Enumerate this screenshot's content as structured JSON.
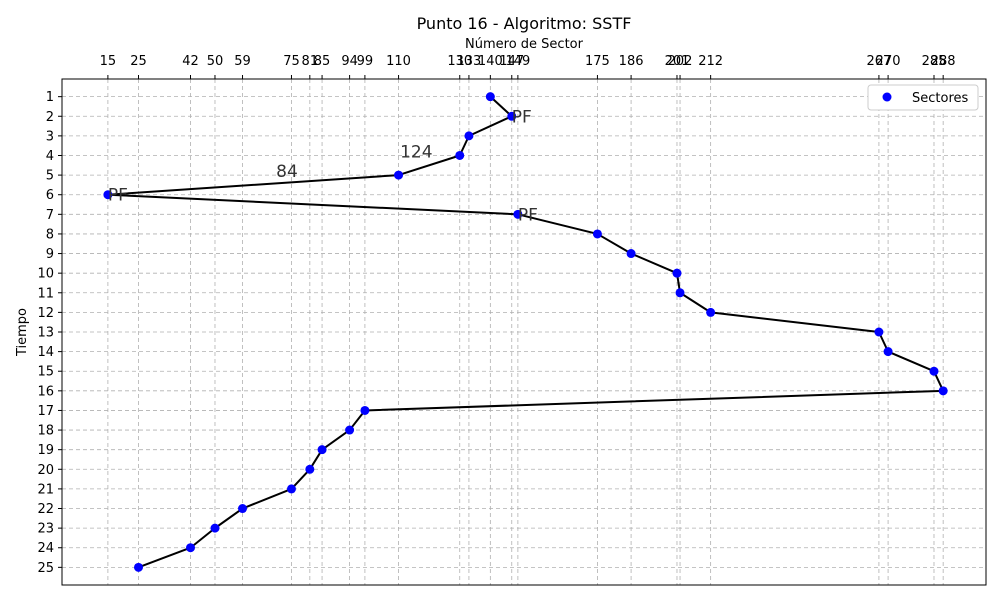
{
  "chart_data": {
    "type": "line",
    "title": "Punto 16 - Algoritmo: SSTF",
    "xlabel": "Número de Sector",
    "ylabel": "Tiempo",
    "legend": {
      "label": "Sectores",
      "position": "top-right"
    },
    "x_ticks": [
      15,
      25,
      42,
      50,
      59,
      75,
      81,
      85,
      94,
      99,
      110,
      130,
      133,
      140,
      147,
      149,
      175,
      186,
      201,
      202,
      212,
      267,
      270,
      285,
      288
    ],
    "y_ticks": [
      1,
      2,
      3,
      4,
      5,
      6,
      7,
      8,
      9,
      10,
      11,
      12,
      13,
      14,
      15,
      16,
      17,
      18,
      19,
      20,
      21,
      22,
      23,
      24,
      25
    ],
    "xlim": [
      0,
      302
    ],
    "ylim": [
      25.9,
      0.1
    ],
    "grid": true,
    "points": [
      {
        "x": 140,
        "y": 1
      },
      {
        "x": 147,
        "y": 2
      },
      {
        "x": 133,
        "y": 3
      },
      {
        "x": 130,
        "y": 4
      },
      {
        "x": 110,
        "y": 5
      },
      {
        "x": 15,
        "y": 6
      },
      {
        "x": 149,
        "y": 7
      },
      {
        "x": 175,
        "y": 8
      },
      {
        "x": 186,
        "y": 9
      },
      {
        "x": 201,
        "y": 10
      },
      {
        "x": 202,
        "y": 11
      },
      {
        "x": 212,
        "y": 12
      },
      {
        "x": 267,
        "y": 13
      },
      {
        "x": 270,
        "y": 14
      },
      {
        "x": 285,
        "y": 15
      },
      {
        "x": 288,
        "y": 16
      },
      {
        "x": 99,
        "y": 17
      },
      {
        "x": 94,
        "y": 18
      },
      {
        "x": 85,
        "y": 19
      },
      {
        "x": 81,
        "y": 20
      },
      {
        "x": 75,
        "y": 21
      },
      {
        "x": 59,
        "y": 22
      },
      {
        "x": 50,
        "y": 23
      },
      {
        "x": 42,
        "y": 24
      },
      {
        "x": 25,
        "y": 25
      }
    ],
    "annotations": [
      {
        "text": "PF",
        "x": 147,
        "y": 2
      },
      {
        "text": "PF",
        "x": 15,
        "y": 6
      },
      {
        "text": "PF",
        "x": 149,
        "y": 7
      },
      {
        "text": "84",
        "x": 70,
        "y": 4.8
      },
      {
        "text": "124",
        "x": 110.5,
        "y": 3.8
      }
    ],
    "colors": {
      "marker": "#0000ff",
      "line": "#000000"
    }
  }
}
